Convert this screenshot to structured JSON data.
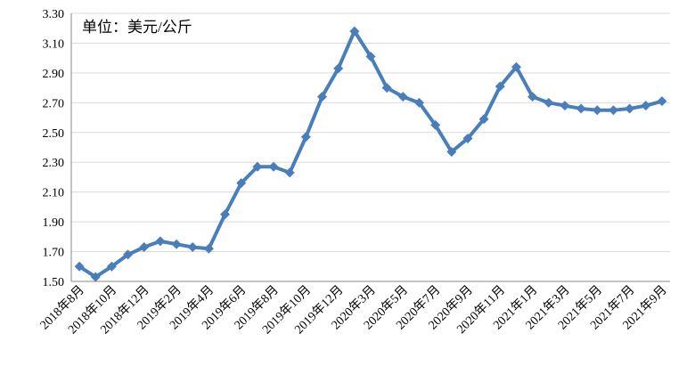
{
  "chart_data": {
    "type": "line",
    "annotation": "单位：美元/公斤",
    "categories": [
      "2018年8月",
      null,
      "2018年10月",
      null,
      "2018年12月",
      null,
      "2019年2月",
      null,
      "2019年4月",
      null,
      "2019年6月",
      null,
      "2019年8月",
      null,
      "2019年10月",
      null,
      "2019年12月",
      null,
      "2020年3月",
      null,
      "2020年5月",
      null,
      "2020年7月",
      null,
      "2020年9月",
      null,
      "2020年11月",
      null,
      "2021年1月",
      null,
      "2021年3月",
      null,
      "2021年5月",
      null,
      "2021年7月",
      null,
      "2021年9月"
    ],
    "series": [
      {
        "color": "#4a7ebb",
        "values": [
          1.6,
          1.53,
          1.6,
          1.68,
          1.73,
          1.77,
          1.75,
          1.73,
          1.72,
          1.95,
          2.16,
          2.27,
          2.27,
          2.23,
          2.47,
          2.74,
          2.93,
          3.18,
          3.01,
          2.8,
          2.74,
          2.7,
          2.55,
          2.37,
          2.46,
          2.59,
          2.81,
          2.94,
          2.74,
          2.7,
          2.68,
          2.66,
          2.65,
          2.65,
          2.66,
          2.68,
          2.71
        ]
      }
    ],
    "ylim": [
      1.5,
      3.3
    ],
    "yticks": [
      {
        "value": 1.5,
        "label": "1.50"
      },
      {
        "value": 1.7,
        "label": "1.70"
      },
      {
        "value": 1.9,
        "label": "1.90"
      },
      {
        "value": 2.1,
        "label": "2.10"
      },
      {
        "value": 2.3,
        "label": "2.30"
      },
      {
        "value": 2.5,
        "label": "2.50"
      },
      {
        "value": 2.7,
        "label": "2.70"
      },
      {
        "value": 2.9,
        "label": "2.90"
      },
      {
        "value": 3.1,
        "label": "3.10"
      },
      {
        "value": 3.3,
        "label": "3.30"
      }
    ],
    "grid": true
  }
}
